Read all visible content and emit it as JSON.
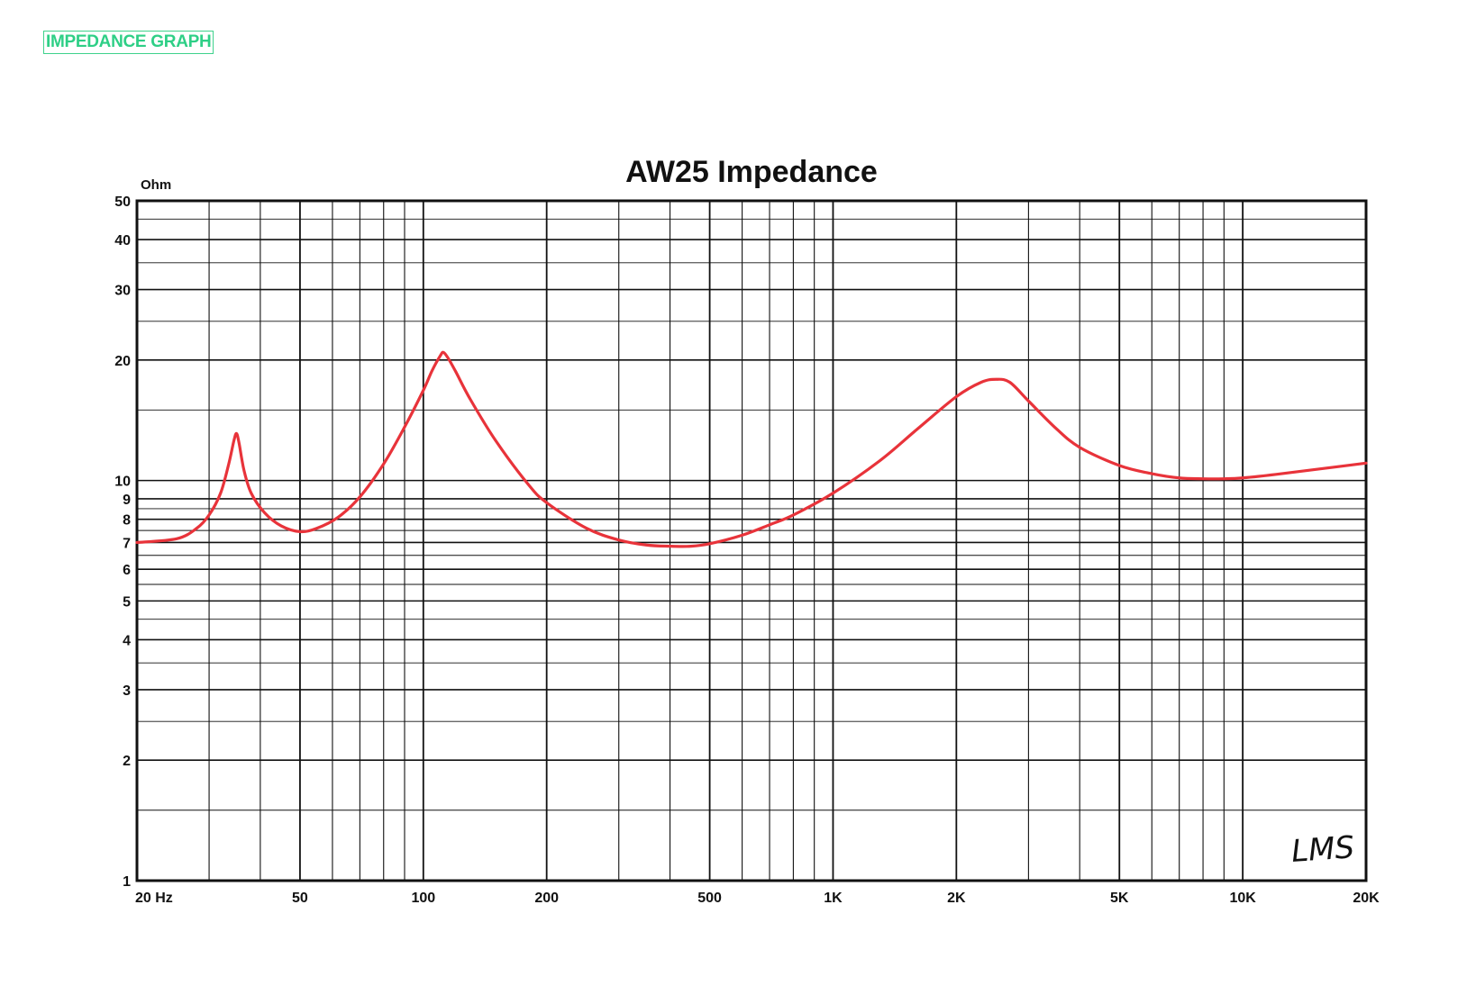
{
  "page_label": "IMPEDANCE GRAPH",
  "chart_data": {
    "type": "line",
    "title": "AW25 Impedance",
    "ylabel": "Ohm",
    "xlabel": "",
    "x_scale": "log",
    "y_scale": "log",
    "xlim": [
      20,
      20000
    ],
    "ylim": [
      1,
      50
    ],
    "grid": true,
    "x_ticks": [
      {
        "value": 20,
        "label": "20 Hz"
      },
      {
        "value": 50,
        "label": "50"
      },
      {
        "value": 100,
        "label": "100"
      },
      {
        "value": 200,
        "label": "200"
      },
      {
        "value": 500,
        "label": "500"
      },
      {
        "value": 1000,
        "label": "1K"
      },
      {
        "value": 2000,
        "label": "2K"
      },
      {
        "value": 5000,
        "label": "5K"
      },
      {
        "value": 10000,
        "label": "10K"
      },
      {
        "value": 20000,
        "label": "20K"
      }
    ],
    "y_ticks": [
      {
        "value": 1,
        "label": "1"
      },
      {
        "value": 2,
        "label": "2"
      },
      {
        "value": 3,
        "label": "3"
      },
      {
        "value": 4,
        "label": "4"
      },
      {
        "value": 5,
        "label": "5"
      },
      {
        "value": 6,
        "label": "6"
      },
      {
        "value": 7,
        "label": "7"
      },
      {
        "value": 8,
        "label": "8"
      },
      {
        "value": 9,
        "label": "9"
      },
      {
        "value": 10,
        "label": "10"
      },
      {
        "value": 20,
        "label": "20"
      },
      {
        "value": 30,
        "label": "30"
      },
      {
        "value": 40,
        "label": "40"
      },
      {
        "value": 50,
        "label": "50"
      }
    ],
    "series": [
      {
        "color": "#e8333a",
        "x": [
          20,
          25,
          28,
          30,
          32,
          33.5,
          34.5,
          35,
          35.5,
          36.5,
          38,
          41,
          45,
          50,
          55,
          62,
          70,
          80,
          90,
          100,
          105,
          110,
          112,
          115,
          120,
          130,
          150,
          180,
          200,
          250,
          300,
          350,
          400,
          450,
          500,
          600,
          700,
          800,
          1000,
          1300,
          1600,
          2000,
          2300,
          2500,
          2700,
          3000,
          3500,
          4000,
          5000,
          6000,
          7000,
          8000,
          9000,
          10000,
          12000,
          15000,
          20000
        ],
        "y": [
          7.0,
          7.15,
          7.6,
          8.2,
          9.3,
          11.0,
          12.6,
          13.1,
          12.4,
          10.6,
          9.3,
          8.3,
          7.7,
          7.45,
          7.6,
          8.1,
          9.1,
          11.0,
          13.6,
          16.8,
          18.8,
          20.5,
          20.9,
          20.2,
          18.7,
          16.0,
          12.6,
          9.8,
          8.8,
          7.6,
          7.1,
          6.9,
          6.85,
          6.85,
          6.95,
          7.3,
          7.75,
          8.2,
          9.3,
          11.2,
          13.4,
          16.2,
          17.6,
          17.9,
          17.6,
          15.8,
          13.5,
          12.1,
          10.9,
          10.4,
          10.15,
          10.1,
          10.1,
          10.15,
          10.35,
          10.65,
          11.05
        ]
      }
    ]
  },
  "logo": {
    "text": "LMS"
  }
}
